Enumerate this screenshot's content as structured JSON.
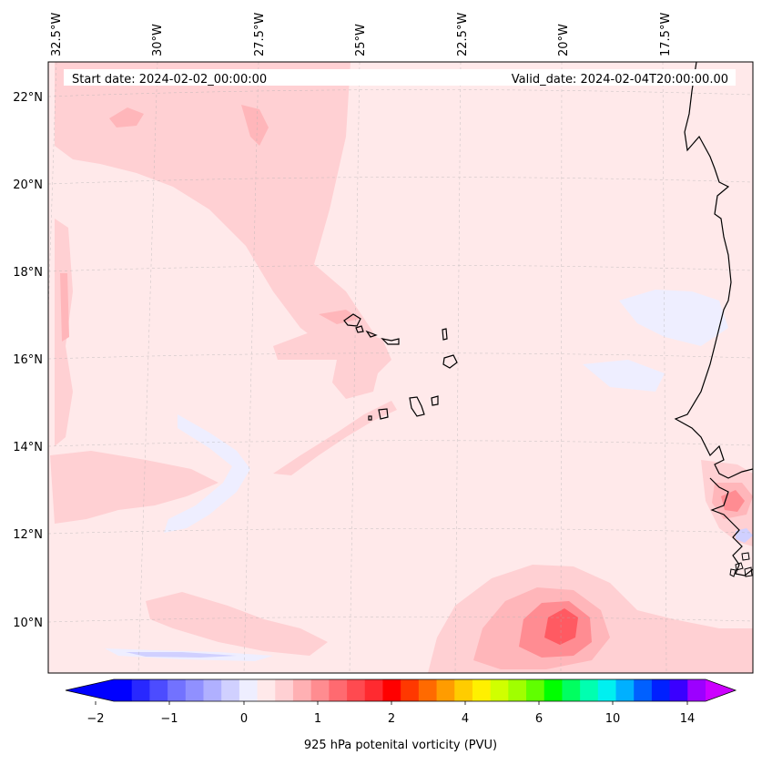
{
  "map": {
    "start_label": "Start date: 2024-02-02_00:00:00",
    "valid_label": "Valid_date: 2024-02-04T20:00:00.00",
    "lon_labels": [
      "32.5°W",
      "30°W",
      "27.5°W",
      "25°W",
      "22.5°W",
      "20°W",
      "17.5°W"
    ],
    "lat_labels": [
      "22°N",
      "20°N",
      "18°N",
      "16°N",
      "14°N",
      "12°N",
      "10°N"
    ],
    "field": "925 hPa potenital vorticity (PVU)",
    "colors": {
      "background": "#ffe9ea",
      "light_red": "#ffd0d3",
      "mid_red": "#ffb6ba",
      "strong_red": "#ff8c92",
      "deep_red": "#ff5a62",
      "light_blue": "#eeeeff",
      "coast": "#000000"
    }
  },
  "colorbar": {
    "tick_labels": [
      "−2",
      "−1",
      "0",
      "1",
      "2",
      "4",
      "6",
      "10",
      "14"
    ],
    "label": "925 hPa potenital vorticity (PVU)",
    "colors": [
      "#0000ff",
      "#2828ff",
      "#4c4cff",
      "#7272ff",
      "#9090ff",
      "#b0b0ff",
      "#d0d0ff",
      "#eeeeff",
      "#ffe9ea",
      "#ffd0d3",
      "#ffb0b3",
      "#ff8c90",
      "#ff6a70",
      "#ff4a50",
      "#ff2a30",
      "#ff0000",
      "#ff3800",
      "#ff6a00",
      "#ff9c00",
      "#ffcc00",
      "#fff000",
      "#d0ff00",
      "#a0ff00",
      "#60ff00",
      "#00ff00",
      "#00ff60",
      "#00ffb0",
      "#00f0f0",
      "#00b0ff",
      "#0060ff",
      "#0020ff",
      "#3a00ff",
      "#9c00ff"
    ],
    "under_color": "#0000ff",
    "over_color": "#cc00ff"
  }
}
